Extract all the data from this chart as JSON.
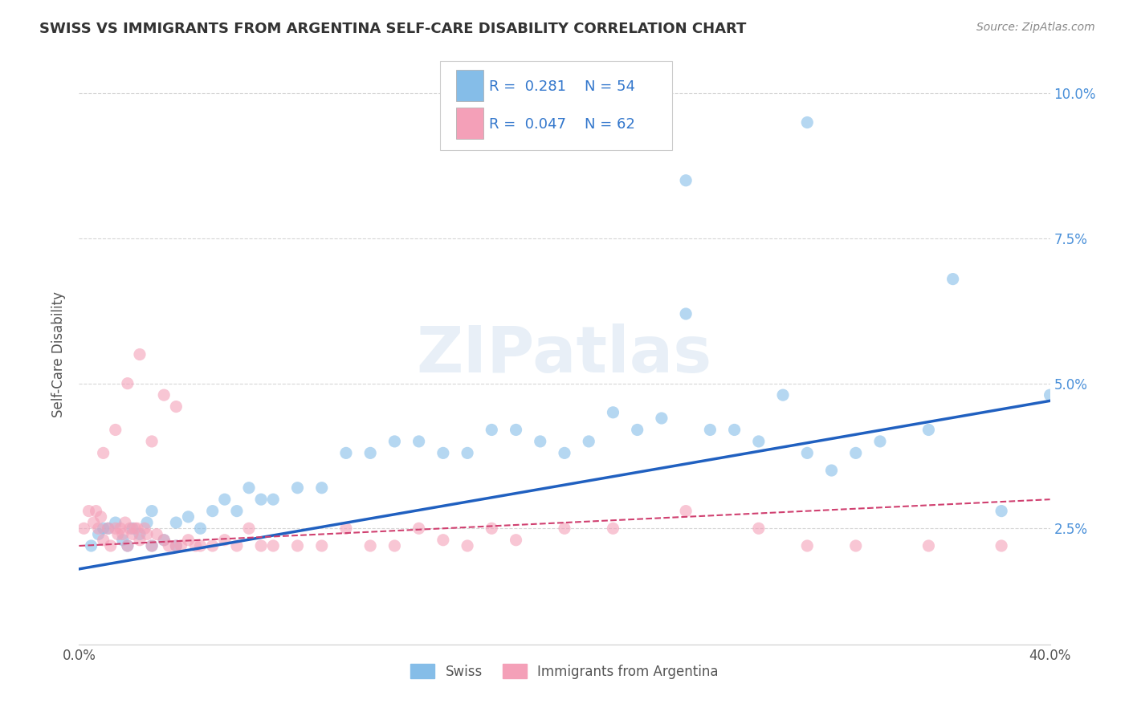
{
  "title": "SWISS VS IMMIGRANTS FROM ARGENTINA SELF-CARE DISABILITY CORRELATION CHART",
  "source": "Source: ZipAtlas.com",
  "ylabel": "Self-Care Disability",
  "xlim": [
    0.0,
    0.4
  ],
  "ylim": [
    0.005,
    0.105
  ],
  "yticks": [
    0.025,
    0.05,
    0.075,
    0.1
  ],
  "ytick_labels": [
    "2.5%",
    "5.0%",
    "7.5%",
    "10.0%"
  ],
  "xticks": [
    0.0,
    0.05,
    0.1,
    0.15,
    0.2,
    0.25,
    0.3,
    0.35,
    0.4
  ],
  "xtick_labels": [
    "0.0%",
    "",
    "",
    "",
    "",
    "",
    "",
    "",
    "40.0%"
  ],
  "swiss_R": 0.281,
  "swiss_N": 54,
  "argentina_R": 0.047,
  "argentina_N": 62,
  "swiss_color": "#85BDE8",
  "argentina_color": "#F4A0B8",
  "swiss_line_color": "#2060C0",
  "argentina_line_color": "#D04070",
  "background_color": "#FFFFFF",
  "grid_color": "#BBBBBB",
  "watermark": "ZIPatlas",
  "legend_swiss": "Swiss",
  "legend_argentina": "Immigrants from Argentina",
  "swiss_x": [
    0.005,
    0.008,
    0.01,
    0.012,
    0.015,
    0.018,
    0.02,
    0.022,
    0.025,
    0.028,
    0.03,
    0.03,
    0.035,
    0.04,
    0.04,
    0.045,
    0.05,
    0.055,
    0.06,
    0.065,
    0.07,
    0.075,
    0.08,
    0.09,
    0.1,
    0.11,
    0.12,
    0.13,
    0.14,
    0.15,
    0.16,
    0.17,
    0.18,
    0.19,
    0.2,
    0.21,
    0.22,
    0.23,
    0.24,
    0.25,
    0.26,
    0.27,
    0.28,
    0.29,
    0.3,
    0.31,
    0.32,
    0.33,
    0.35,
    0.36,
    0.38,
    0.4,
    0.25,
    0.3
  ],
  "swiss_y": [
    0.022,
    0.024,
    0.025,
    0.025,
    0.026,
    0.023,
    0.022,
    0.025,
    0.024,
    0.026,
    0.022,
    0.028,
    0.023,
    0.022,
    0.026,
    0.027,
    0.025,
    0.028,
    0.03,
    0.028,
    0.032,
    0.03,
    0.03,
    0.032,
    0.032,
    0.038,
    0.038,
    0.04,
    0.04,
    0.038,
    0.038,
    0.042,
    0.042,
    0.04,
    0.038,
    0.04,
    0.045,
    0.042,
    0.044,
    0.062,
    0.042,
    0.042,
    0.04,
    0.048,
    0.038,
    0.035,
    0.038,
    0.04,
    0.042,
    0.068,
    0.028,
    0.048,
    0.085,
    0.095
  ],
  "argentina_x": [
    0.002,
    0.004,
    0.006,
    0.007,
    0.008,
    0.009,
    0.01,
    0.012,
    0.013,
    0.015,
    0.016,
    0.017,
    0.018,
    0.019,
    0.02,
    0.021,
    0.022,
    0.023,
    0.024,
    0.025,
    0.027,
    0.028,
    0.03,
    0.032,
    0.035,
    0.037,
    0.04,
    0.042,
    0.045,
    0.048,
    0.05,
    0.055,
    0.06,
    0.065,
    0.07,
    0.075,
    0.08,
    0.09,
    0.1,
    0.11,
    0.12,
    0.13,
    0.14,
    0.15,
    0.16,
    0.17,
    0.18,
    0.2,
    0.22,
    0.25,
    0.28,
    0.3,
    0.32,
    0.35,
    0.38,
    0.01,
    0.015,
    0.02,
    0.025,
    0.03,
    0.035,
    0.04
  ],
  "argentina_y": [
    0.025,
    0.028,
    0.026,
    0.028,
    0.025,
    0.027,
    0.023,
    0.025,
    0.022,
    0.025,
    0.024,
    0.025,
    0.024,
    0.026,
    0.022,
    0.025,
    0.024,
    0.025,
    0.025,
    0.023,
    0.025,
    0.024,
    0.022,
    0.024,
    0.023,
    0.022,
    0.022,
    0.022,
    0.023,
    0.022,
    0.022,
    0.022,
    0.023,
    0.022,
    0.025,
    0.022,
    0.022,
    0.022,
    0.022,
    0.025,
    0.022,
    0.022,
    0.025,
    0.023,
    0.022,
    0.025,
    0.023,
    0.025,
    0.025,
    0.028,
    0.025,
    0.022,
    0.022,
    0.022,
    0.022,
    0.038,
    0.042,
    0.05,
    0.055,
    0.04,
    0.048,
    0.046
  ],
  "swiss_trend_x": [
    0.0,
    0.4
  ],
  "swiss_trend_y": [
    0.018,
    0.047
  ],
  "argentina_trend_x": [
    0.0,
    0.4
  ],
  "argentina_trend_y": [
    0.022,
    0.03
  ]
}
